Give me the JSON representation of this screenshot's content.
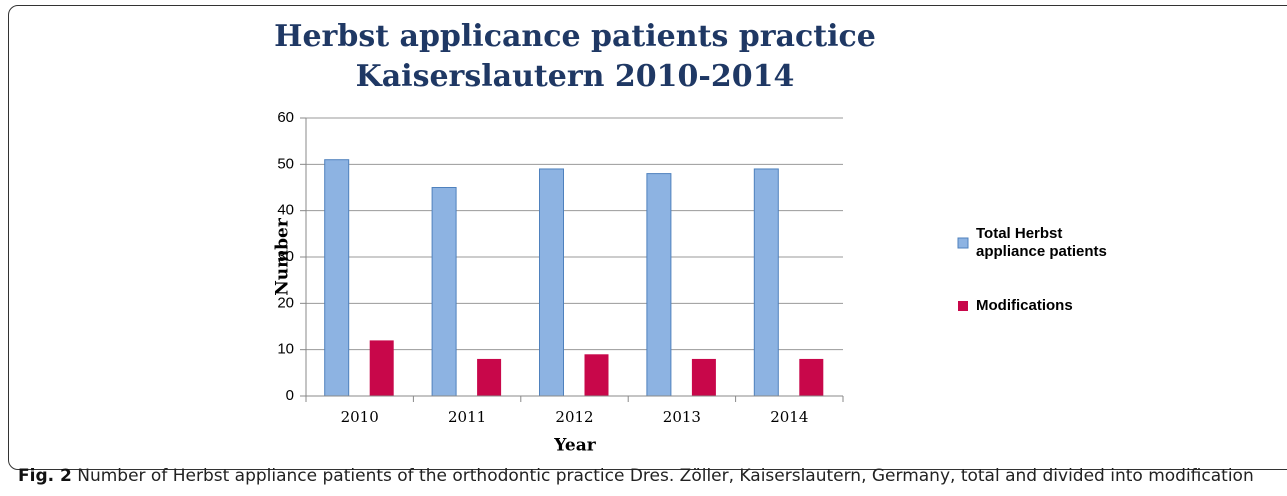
{
  "chart_data": {
    "type": "bar",
    "title": [
      "Herbst applicance patients practice",
      "Kaiserslautern 2010-2014"
    ],
    "x_label": "Year",
    "y_label": "Number",
    "categories": [
      "2010",
      "2011",
      "2012",
      "2013",
      "2014"
    ],
    "series": [
      {
        "name": "Total Herbst appliance patients",
        "color": "#8db3e2",
        "values": [
          51,
          45,
          49,
          48,
          49
        ]
      },
      {
        "name": "Modifications",
        "color": "#c8074a",
        "values": [
          12,
          8,
          9,
          8,
          8
        ]
      }
    ],
    "ylim": [
      0,
      60
    ],
    "yticks": [
      0,
      10,
      20,
      30,
      40,
      50,
      60
    ],
    "grid": true,
    "legend": "right"
  },
  "caption": {
    "label": "Fig. 2",
    "text": "Number of Herbst appliance patients of the orthodontic practice Dres. Zöller, Kaiserslautern, Germany, total and divided into modification"
  }
}
